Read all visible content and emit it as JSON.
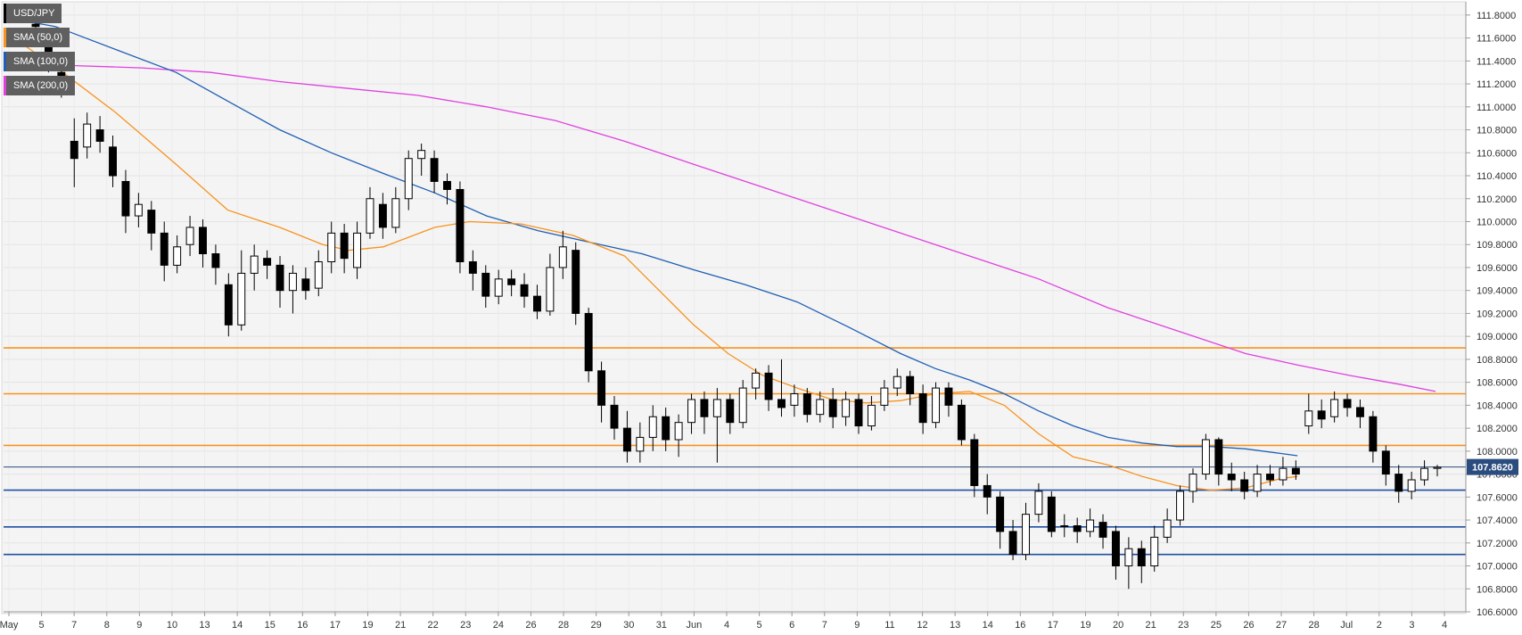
{
  "chart_data": {
    "type": "candlestick",
    "instrument": "USD/JPY",
    "legend": [
      {
        "label": "USD/JPY",
        "color": "#000000"
      },
      {
        "label": "SMA (50,0)",
        "color": "#f7931e"
      },
      {
        "label": "SMA (100,0)",
        "color": "#1f5fb4"
      },
      {
        "label": "SMA (200,0)",
        "color": "#e040e0"
      }
    ],
    "last_price_label": "107.8620",
    "last_price": 107.862,
    "ylim": [
      106.6,
      111.9
    ],
    "yticks": [
      "106.6000",
      "106.8000",
      "107.0000",
      "107.2000",
      "107.4000",
      "107.6000",
      "107.8000",
      "108.0000",
      "108.2000",
      "108.4000",
      "108.6000",
      "108.8000",
      "109.0000",
      "109.2000",
      "109.4000",
      "109.6000",
      "109.8000",
      "110.0000",
      "110.2000",
      "110.4000",
      "110.6000",
      "110.8000",
      "111.0000",
      "111.2000",
      "111.4000",
      "111.6000",
      "111.8000"
    ],
    "ytick_values": [
      106.6,
      106.8,
      107.0,
      107.2,
      107.4,
      107.6,
      107.8,
      108.0,
      108.2,
      108.4,
      108.6,
      108.8,
      109.0,
      109.2,
      109.4,
      109.6,
      109.8,
      110.0,
      110.2,
      110.4,
      110.6,
      110.8,
      111.0,
      111.2,
      111.4,
      111.6,
      111.8
    ],
    "xticks": [
      "May",
      "5",
      "7",
      "8",
      "9",
      "10",
      "13",
      "14",
      "15",
      "16",
      "17",
      "19",
      "21",
      "22",
      "23",
      "24",
      "26",
      "28",
      "29",
      "30",
      "31",
      "Jun",
      "4",
      "5",
      "6",
      "7",
      "9",
      "11",
      "12",
      "13",
      "14",
      "16",
      "17",
      "19",
      "20",
      "21",
      "23",
      "25",
      "26",
      "27",
      "28",
      "Jul",
      "2",
      "3",
      "4"
    ],
    "resistance_levels": [
      108.9,
      108.5,
      108.05
    ],
    "support_levels": [
      107.66,
      107.34,
      107.1
    ],
    "levels_colors": {
      "resistance": "#f7931e",
      "support": "#1f4fa0"
    },
    "grid": true,
    "legend_position": "top-left",
    "sessions": [
      [
        111.72,
        111.7,
        111.76,
        111.58
      ],
      [
        111.52,
        111.4,
        111.6,
        111.3
      ],
      [
        111.3,
        111.15,
        111.38,
        111.08
      ],
      [
        110.7,
        110.55,
        110.9,
        110.3
      ],
      [
        110.65,
        110.85,
        110.95,
        110.55
      ],
      [
        110.8,
        110.7,
        110.92,
        110.6
      ],
      [
        110.65,
        110.4,
        110.75,
        110.3
      ],
      [
        110.35,
        110.05,
        110.45,
        109.9
      ],
      [
        110.05,
        110.15,
        110.25,
        109.95
      ],
      [
        110.1,
        109.9,
        110.18,
        109.75
      ],
      [
        109.9,
        109.62,
        110.0,
        109.48
      ],
      [
        109.62,
        109.78,
        109.88,
        109.55
      ],
      [
        109.8,
        109.95,
        110.05,
        109.7
      ],
      [
        109.95,
        109.72,
        110.02,
        109.6
      ],
      [
        109.72,
        109.6,
        109.8,
        109.45
      ],
      [
        109.45,
        109.1,
        109.55,
        109.0
      ],
      [
        109.1,
        109.55,
        109.75,
        109.05
      ],
      [
        109.55,
        109.7,
        109.8,
        109.4
      ],
      [
        109.68,
        109.62,
        109.75,
        109.5
      ],
      [
        109.62,
        109.4,
        109.7,
        109.25
      ],
      [
        109.4,
        109.55,
        109.62,
        109.2
      ],
      [
        109.5,
        109.4,
        109.6,
        109.32
      ],
      [
        109.42,
        109.65,
        109.75,
        109.35
      ],
      [
        109.65,
        109.9,
        110.0,
        109.55
      ],
      [
        109.9,
        109.68,
        109.98,
        109.55
      ],
      [
        109.6,
        109.9,
        110.0,
        109.5
      ],
      [
        109.9,
        110.2,
        110.3,
        109.85
      ],
      [
        110.15,
        109.95,
        110.25,
        109.85
      ],
      [
        109.95,
        110.2,
        110.3,
        109.9
      ],
      [
        110.2,
        110.55,
        110.62,
        110.1
      ],
      [
        110.55,
        110.62,
        110.68,
        110.4
      ],
      [
        110.55,
        110.35,
        110.62,
        110.25
      ],
      [
        110.35,
        110.28,
        110.42,
        110.15
      ],
      [
        110.28,
        109.65,
        110.35,
        109.55
      ],
      [
        109.65,
        109.55,
        109.75,
        109.4
      ],
      [
        109.55,
        109.35,
        109.62,
        109.25
      ],
      [
        109.35,
        109.5,
        109.58,
        109.28
      ],
      [
        109.5,
        109.45,
        109.58,
        109.35
      ],
      [
        109.45,
        109.35,
        109.55,
        109.25
      ],
      [
        109.35,
        109.22,
        109.45,
        109.15
      ],
      [
        109.22,
        109.6,
        109.72,
        109.18
      ],
      [
        109.6,
        109.78,
        109.92,
        109.5
      ],
      [
        109.75,
        109.2,
        109.82,
        109.1
      ],
      [
        109.2,
        108.7,
        109.25,
        108.6
      ],
      [
        108.7,
        108.4,
        108.78,
        108.25
      ],
      [
        108.4,
        108.2,
        108.48,
        108.1
      ],
      [
        108.2,
        108.0,
        108.35,
        107.9
      ],
      [
        108.0,
        108.12,
        108.25,
        107.9
      ],
      [
        108.12,
        108.3,
        108.4,
        108.0
      ],
      [
        108.3,
        108.1,
        108.38,
        108.0
      ],
      [
        108.1,
        108.25,
        108.32,
        107.95
      ],
      [
        108.25,
        108.45,
        108.5,
        108.15
      ],
      [
        108.45,
        108.3,
        108.52,
        108.15
      ],
      [
        108.3,
        108.45,
        108.55,
        107.9
      ],
      [
        108.45,
        108.25,
        108.5,
        108.15
      ],
      [
        108.25,
        108.55,
        108.62,
        108.2
      ],
      [
        108.55,
        108.68,
        108.72,
        108.45
      ],
      [
        108.68,
        108.45,
        108.75,
        108.35
      ],
      [
        108.45,
        108.38,
        108.8,
        108.3
      ],
      [
        108.4,
        108.5,
        108.58,
        108.3
      ],
      [
        108.5,
        108.32,
        108.55,
        108.25
      ],
      [
        108.32,
        108.45,
        108.52,
        108.25
      ],
      [
        108.45,
        108.3,
        108.55,
        108.2
      ],
      [
        108.3,
        108.45,
        108.52,
        108.22
      ],
      [
        108.45,
        108.22,
        108.5,
        108.15
      ],
      [
        108.22,
        108.4,
        108.48,
        108.18
      ],
      [
        108.4,
        108.55,
        108.62,
        108.35
      ],
      [
        108.55,
        108.65,
        108.72,
        108.48
      ],
      [
        108.65,
        108.5,
        108.7,
        108.4
      ],
      [
        108.5,
        108.25,
        108.58,
        108.15
      ],
      [
        108.25,
        108.55,
        108.6,
        108.2
      ],
      [
        108.55,
        108.4,
        108.6,
        108.3
      ],
      [
        108.4,
        108.1,
        108.45,
        108.05
      ],
      [
        108.1,
        107.7,
        108.15,
        107.6
      ],
      [
        107.7,
        107.6,
        107.8,
        107.45
      ],
      [
        107.6,
        107.3,
        107.65,
        107.15
      ],
      [
        107.3,
        107.1,
        107.4,
        107.05
      ],
      [
        107.1,
        107.45,
        107.55,
        107.05
      ],
      [
        107.45,
        107.65,
        107.72,
        107.38
      ],
      [
        107.6,
        107.3,
        107.65,
        107.25
      ],
      [
        107.35,
        107.35,
        107.45,
        107.25
      ],
      [
        107.35,
        107.3,
        107.42,
        107.2
      ],
      [
        107.3,
        107.4,
        107.5,
        107.25
      ],
      [
        107.38,
        107.25,
        107.45,
        107.15
      ],
      [
        107.3,
        107.0,
        107.35,
        106.88
      ],
      [
        107.0,
        107.15,
        107.25,
        106.8
      ],
      [
        107.15,
        107.0,
        107.22,
        106.85
      ],
      [
        107.0,
        107.25,
        107.35,
        106.95
      ],
      [
        107.25,
        107.4,
        107.5,
        107.2
      ],
      [
        107.4,
        107.65,
        107.7,
        107.35
      ],
      [
        107.65,
        107.8,
        107.85,
        107.55
      ],
      [
        107.8,
        108.1,
        108.15,
        107.75
      ],
      [
        108.1,
        107.8,
        108.12,
        107.7
      ],
      [
        107.8,
        107.75,
        107.9,
        107.65
      ],
      [
        107.75,
        107.65,
        107.82,
        107.58
      ],
      [
        107.65,
        107.8,
        107.88,
        107.6
      ],
      [
        107.8,
        107.75,
        107.88,
        107.7
      ],
      [
        107.75,
        107.85,
        107.95,
        107.7
      ],
      [
        107.85,
        107.8,
        107.92,
        107.75
      ],
      [
        108.22,
        108.35,
        108.5,
        108.15
      ],
      [
        108.35,
        108.28,
        108.45,
        108.2
      ],
      [
        108.3,
        108.45,
        108.52,
        108.25
      ],
      [
        108.45,
        108.38,
        108.5,
        108.3
      ],
      [
        108.38,
        108.3,
        108.45,
        108.2
      ],
      [
        108.3,
        108.0,
        108.35,
        107.9
      ],
      [
        108.0,
        107.8,
        108.05,
        107.7
      ],
      [
        107.8,
        107.65,
        107.88,
        107.55
      ],
      [
        107.65,
        107.75,
        107.82,
        107.58
      ],
      [
        107.75,
        107.85,
        107.92,
        107.7
      ],
      [
        107.85,
        107.86,
        107.88,
        107.78
      ]
    ],
    "sma50": [
      [
        0,
        111.66
      ],
      [
        60,
        111.35
      ],
      [
        130,
        110.95
      ],
      [
        200,
        110.5
      ],
      [
        260,
        110.1
      ],
      [
        320,
        109.95
      ],
      [
        370,
        109.8
      ],
      [
        400,
        109.75
      ],
      [
        440,
        109.78
      ],
      [
        500,
        109.95
      ],
      [
        540,
        110.0
      ],
      [
        600,
        109.98
      ],
      [
        660,
        109.88
      ],
      [
        720,
        109.7
      ],
      [
        760,
        109.4
      ],
      [
        800,
        109.1
      ],
      [
        840,
        108.85
      ],
      [
        880,
        108.66
      ],
      [
        920,
        108.55
      ],
      [
        960,
        108.45
      ],
      [
        1000,
        108.42
      ],
      [
        1040,
        108.44
      ],
      [
        1080,
        108.5
      ],
      [
        1120,
        108.52
      ],
      [
        1160,
        108.4
      ],
      [
        1200,
        108.15
      ],
      [
        1240,
        107.95
      ],
      [
        1280,
        107.88
      ],
      [
        1320,
        107.78
      ],
      [
        1360,
        107.7
      ],
      [
        1400,
        107.66
      ],
      [
        1440,
        107.68
      ],
      [
        1480,
        107.76
      ],
      [
        1500,
        107.78
      ]
    ],
    "sma100": [
      [
        0,
        111.78
      ],
      [
        60,
        111.7
      ],
      [
        130,
        111.5
      ],
      [
        200,
        111.3
      ],
      [
        260,
        111.05
      ],
      [
        320,
        110.8
      ],
      [
        380,
        110.6
      ],
      [
        440,
        110.42
      ],
      [
        500,
        110.25
      ],
      [
        560,
        110.05
      ],
      [
        620,
        109.92
      ],
      [
        680,
        109.82
      ],
      [
        740,
        109.72
      ],
      [
        800,
        109.58
      ],
      [
        860,
        109.45
      ],
      [
        920,
        109.3
      ],
      [
        980,
        109.08
      ],
      [
        1040,
        108.85
      ],
      [
        1080,
        108.72
      ],
      [
        1120,
        108.62
      ],
      [
        1160,
        108.5
      ],
      [
        1200,
        108.35
      ],
      [
        1240,
        108.22
      ],
      [
        1280,
        108.12
      ],
      [
        1320,
        108.07
      ],
      [
        1360,
        108.04
      ],
      [
        1400,
        108.04
      ],
      [
        1440,
        108.02
      ],
      [
        1480,
        107.98
      ],
      [
        1500,
        107.96
      ]
    ],
    "sma200": [
      [
        0,
        111.34
      ],
      [
        80,
        111.36
      ],
      [
        160,
        111.34
      ],
      [
        240,
        111.3
      ],
      [
        320,
        111.22
      ],
      [
        400,
        111.16
      ],
      [
        480,
        111.1
      ],
      [
        560,
        111.0
      ],
      [
        640,
        110.88
      ],
      [
        720,
        110.7
      ],
      [
        800,
        110.5
      ],
      [
        880,
        110.3
      ],
      [
        960,
        110.1
      ],
      [
        1040,
        109.9
      ],
      [
        1120,
        109.7
      ],
      [
        1200,
        109.5
      ],
      [
        1280,
        109.25
      ],
      [
        1360,
        109.05
      ],
      [
        1400,
        108.95
      ],
      [
        1440,
        108.85
      ],
      [
        1500,
        108.75
      ],
      [
        1560,
        108.66
      ],
      [
        1620,
        108.58
      ],
      [
        1660,
        108.52
      ]
    ]
  }
}
